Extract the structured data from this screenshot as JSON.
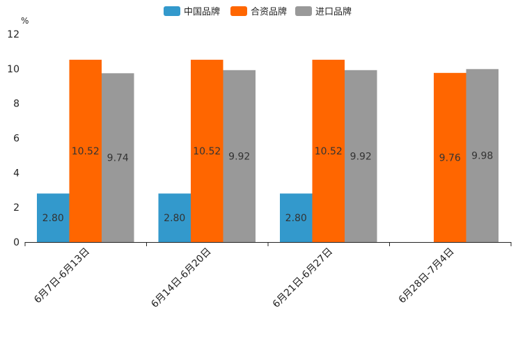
{
  "chart_data": {
    "type": "bar",
    "title": "",
    "xlabel": "",
    "ylabel": "%",
    "ylim": [
      0,
      12
    ],
    "yticks": [
      "0",
      "2",
      "4",
      "6",
      "8",
      "10",
      "12"
    ],
    "grid": false,
    "legend_position": "top-center",
    "categories": [
      "6月7日-6月13日",
      "6月14日-6月20日",
      "6月21日-6月27日",
      "6月28日-7月4日"
    ],
    "series": [
      {
        "name": "中国品牌",
        "color": "#3399cc",
        "values": [
          2.8,
          2.8,
          2.8,
          null
        ],
        "labels": [
          "2.80",
          "2.80",
          "2.80",
          ""
        ]
      },
      {
        "name": "合资品牌",
        "color": "#ff6600",
        "values": [
          10.52,
          10.52,
          10.52,
          9.76
        ],
        "labels": [
          "10.52",
          "10.52",
          "10.52",
          "9.76"
        ]
      },
      {
        "name": "进口品牌",
        "color": "#999999",
        "values": [
          9.74,
          9.92,
          9.92,
          9.98
        ],
        "labels": [
          "9.74",
          "9.92",
          "9.92",
          "9.98"
        ]
      }
    ]
  }
}
